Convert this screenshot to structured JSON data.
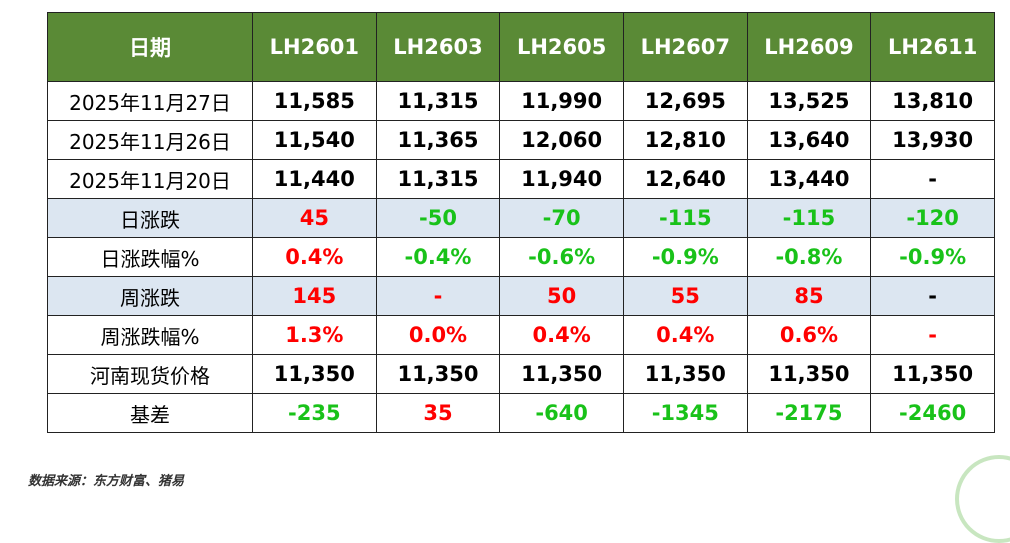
{
  "table": {
    "header": [
      "日期",
      "LH2601",
      "LH2603",
      "LH2605",
      "LH2607",
      "LH2609",
      "LH2611"
    ],
    "rows": [
      [
        "2025年11月27日",
        "11,585",
        "11,315",
        "11,990",
        "12,695",
        "13,525",
        "13,810"
      ],
      [
        "2025年11月26日",
        "11,540",
        "11,365",
        "12,060",
        "12,810",
        "13,640",
        "13,930"
      ],
      [
        "2025年11月20日",
        "11,440",
        "11,315",
        "11,940",
        "12,640",
        "13,440",
        "-"
      ],
      [
        "日涨跌",
        "45",
        "-50",
        "-70",
        "-115",
        "-115",
        "-120"
      ],
      [
        "日涨跌幅%",
        "0.4%",
        "-0.4%",
        "-0.6%",
        "-0.9%",
        "-0.8%",
        "-0.9%"
      ],
      [
        "周涨跌",
        "145",
        "-",
        "50",
        "55",
        "85",
        "-"
      ],
      [
        "周涨跌幅%",
        "1.3%",
        "0.0%",
        "0.4%",
        "0.4%",
        "0.6%",
        "-"
      ],
      [
        "河南现货价格",
        "11,350",
        "11,350",
        "11,350",
        "11,350",
        "11,350",
        "11,350"
      ],
      [
        "基差",
        "-235",
        "35",
        "-640",
        "-1345",
        "-2175",
        "-2460"
      ]
    ]
  },
  "source": "数据来源：东方财富、猪易"
}
